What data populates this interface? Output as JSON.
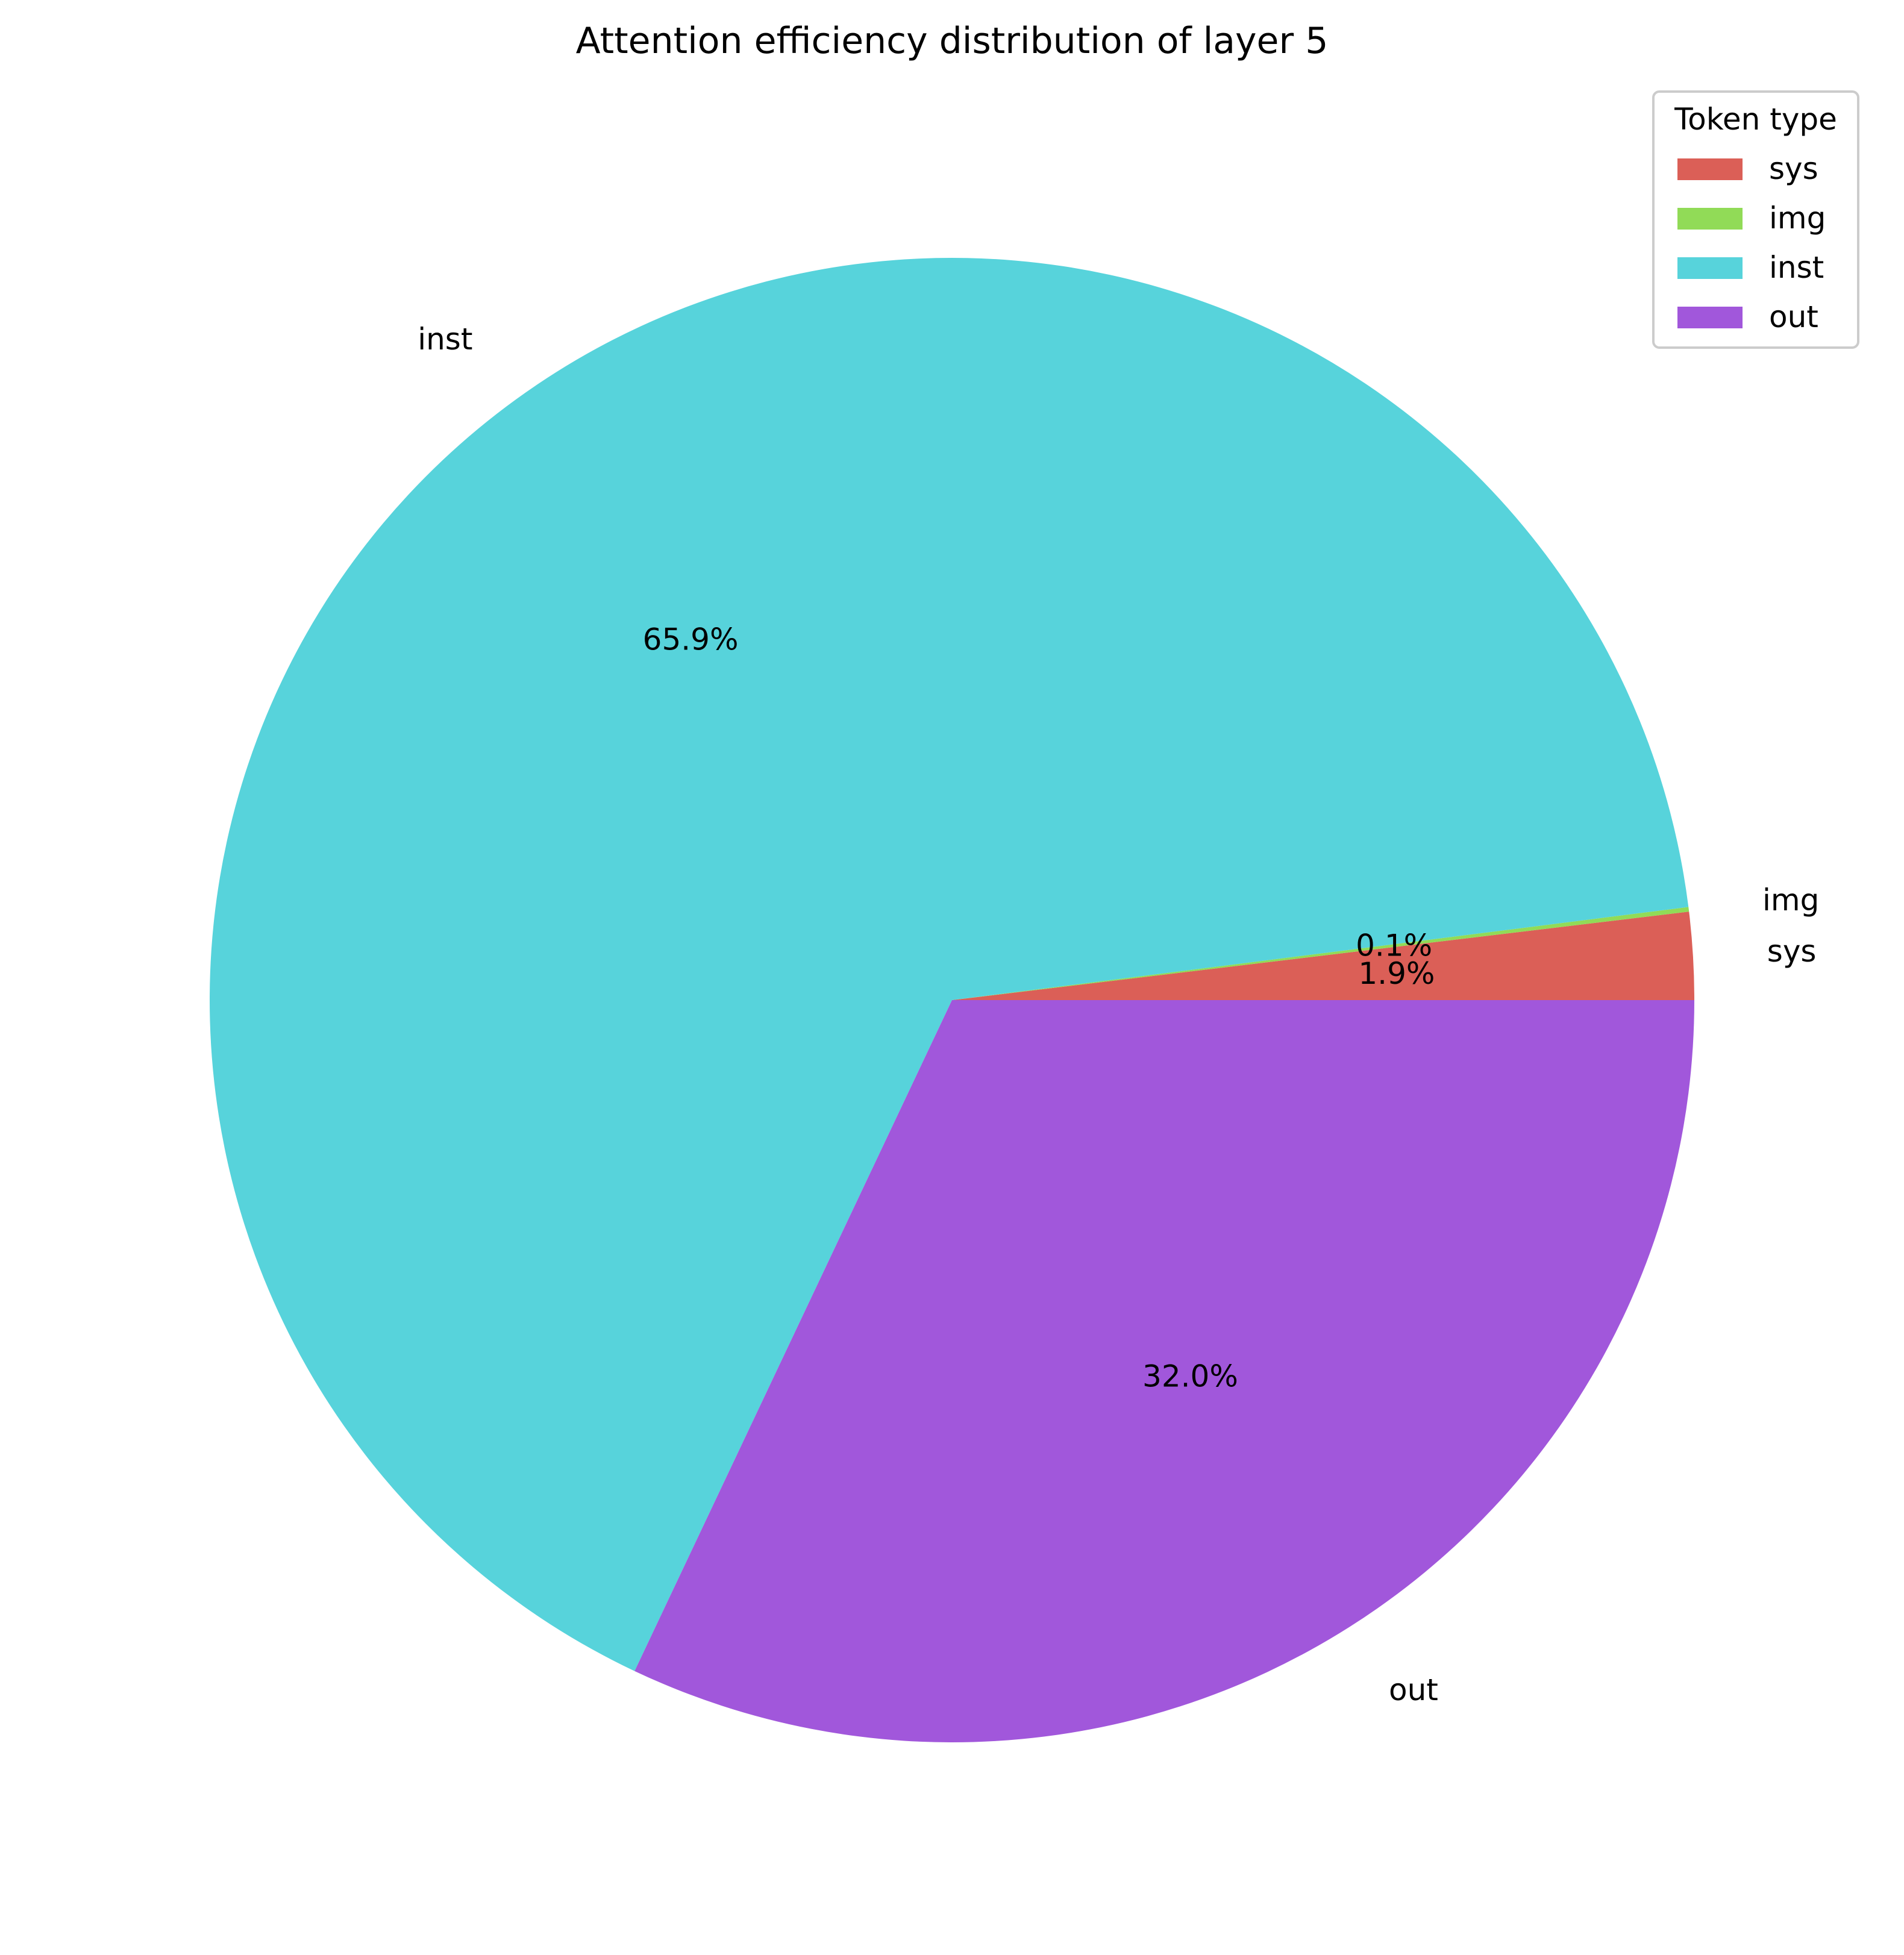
{
  "chart_data": {
    "type": "pie",
    "title": "Attention efficiency distribution of layer 5",
    "slices": [
      {
        "label": "sys",
        "value": 1.9,
        "pct_label": "1.9%",
        "color": "#db5f57"
      },
      {
        "label": "img",
        "value": 0.1,
        "pct_label": "0.1%",
        "color": "#91db57"
      },
      {
        "label": "inst",
        "value": 65.9,
        "pct_label": "65.9%",
        "color": "#57d3db"
      },
      {
        "label": "out",
        "value": 32.0,
        "pct_label": "32.0%",
        "color": "#a157db"
      }
    ],
    "start_angle_deg": 0,
    "direction": "counterclockwise",
    "legend": {
      "title": "Token type",
      "placement": "top-right",
      "entries": [
        "sys",
        "img",
        "inst",
        "out"
      ]
    }
  }
}
